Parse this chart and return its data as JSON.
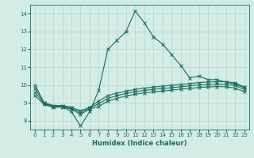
{
  "xlabel": "Humidex (Indice chaleur)",
  "bg_color": "#d4ece6",
  "grid_color": "#b8d8d0",
  "line_color": "#1a6b60",
  "spine_color": "#c0d0cc",
  "xlim": [
    -0.5,
    23.5
  ],
  "ylim": [
    7.5,
    14.5
  ],
  "xticks": [
    0,
    1,
    2,
    3,
    4,
    5,
    6,
    7,
    8,
    9,
    10,
    11,
    12,
    13,
    14,
    15,
    16,
    17,
    18,
    19,
    20,
    21,
    22,
    23
  ],
  "yticks": [
    8,
    9,
    10,
    11,
    12,
    13,
    14
  ],
  "series": [
    {
      "x": [
        0,
        1,
        2,
        3,
        4,
        5,
        6,
        7,
        8,
        9,
        10,
        11,
        12,
        13,
        14,
        15,
        16,
        17,
        18,
        19,
        20,
        21,
        22,
        23
      ],
      "y": [
        10.0,
        9.0,
        8.8,
        8.8,
        8.5,
        7.7,
        8.5,
        9.7,
        12.0,
        12.5,
        13.0,
        14.15,
        13.5,
        12.7,
        12.3,
        11.7,
        11.1,
        10.4,
        10.5,
        10.3,
        10.3,
        10.15,
        10.05,
        9.85
      ]
    },
    {
      "x": [
        0,
        1,
        2,
        3,
        4,
        5,
        6,
        7,
        8,
        9,
        10,
        11,
        12,
        13,
        14,
        15,
        16,
        17,
        18,
        19,
        20,
        21,
        22,
        23
      ],
      "y": [
        9.8,
        9.0,
        8.85,
        8.85,
        8.75,
        8.55,
        8.75,
        9.1,
        9.4,
        9.55,
        9.65,
        9.75,
        9.82,
        9.88,
        9.93,
        9.98,
        10.03,
        10.08,
        10.13,
        10.16,
        10.18,
        10.18,
        10.12,
        9.88
      ]
    },
    {
      "x": [
        0,
        1,
        2,
        3,
        4,
        5,
        6,
        7,
        8,
        9,
        10,
        11,
        12,
        13,
        14,
        15,
        16,
        17,
        18,
        19,
        20,
        21,
        22,
        23
      ],
      "y": [
        9.6,
        8.95,
        8.8,
        8.8,
        8.7,
        8.45,
        8.7,
        8.95,
        9.25,
        9.4,
        9.52,
        9.62,
        9.69,
        9.75,
        9.8,
        9.85,
        9.9,
        9.95,
        10.0,
        10.03,
        10.05,
        10.04,
        9.97,
        9.75
      ]
    },
    {
      "x": [
        0,
        1,
        2,
        3,
        4,
        5,
        6,
        7,
        8,
        9,
        10,
        11,
        12,
        13,
        14,
        15,
        16,
        17,
        18,
        19,
        20,
        21,
        22,
        23
      ],
      "y": [
        9.4,
        8.9,
        8.75,
        8.75,
        8.65,
        8.35,
        8.65,
        8.8,
        9.1,
        9.25,
        9.38,
        9.48,
        9.55,
        9.61,
        9.66,
        9.71,
        9.76,
        9.81,
        9.86,
        9.89,
        9.91,
        9.9,
        9.82,
        9.62
      ]
    }
  ]
}
